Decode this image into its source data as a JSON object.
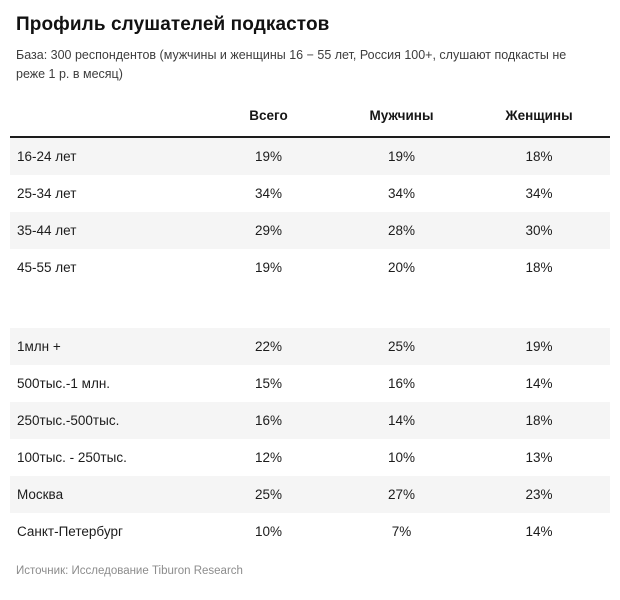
{
  "title": "Профиль слушателей подкастов",
  "subtitle": "База: 300 респондентов (мужчины и женщины 16 − 55 лет, Россия 100+, слушают подкасты не реже 1 р. в месяц)",
  "source": "Источник: Исследование Tiburon Research",
  "chart_data": {
    "type": "table",
    "title": "Профиль слушателей подкастов",
    "columns": [
      "Всего",
      "Мужчины",
      "Женщины"
    ],
    "groups": [
      {
        "name": "age",
        "rows": [
          {
            "label": "16-24 лет",
            "values": [
              "19%",
              "19%",
              "18%"
            ]
          },
          {
            "label": "25-34 лет",
            "values": [
              "34%",
              "34%",
              "34%"
            ]
          },
          {
            "label": "35-44 лет",
            "values": [
              "29%",
              "28%",
              "30%"
            ]
          },
          {
            "label": "45-55 лет",
            "values": [
              "19%",
              "20%",
              "18%"
            ]
          }
        ]
      },
      {
        "name": "city-size",
        "rows": [
          {
            "label": "1млн +",
            "values": [
              "22%",
              "25%",
              "19%"
            ]
          },
          {
            "label": "500тыс.-1 млн.",
            "values": [
              "15%",
              "16%",
              "14%"
            ]
          },
          {
            "label": "250тыс.-500тыс.",
            "values": [
              "16%",
              "14%",
              "18%"
            ]
          },
          {
            "label": "100тыс. - 250тыс.",
            "values": [
              "12%",
              "10%",
              "13%"
            ]
          },
          {
            "label": "Москва",
            "values": [
              "25%",
              "27%",
              "23%"
            ]
          },
          {
            "label": "Санкт-Петербург",
            "values": [
              "10%",
              "7%",
              "14%"
            ]
          }
        ]
      }
    ],
    "style_hints": {
      "shaded_row_color": "#f5f5f5",
      "header_rule_color": "#1c1c1c"
    }
  }
}
